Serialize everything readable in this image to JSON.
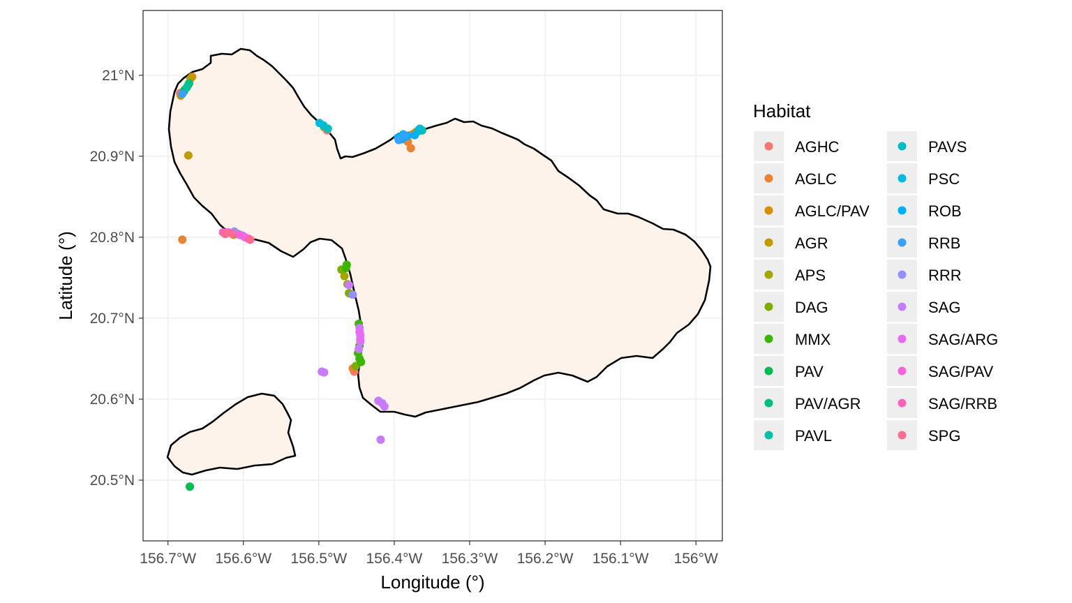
{
  "chart_data": {
    "type": "scatter",
    "title": "",
    "xlabel": "Longitude (°)",
    "ylabel": "Latitude (°)",
    "xlim": [
      -156.733,
      -155.965
    ],
    "ylim": [
      20.425,
      21.08
    ],
    "x_ticks": [
      {
        "value": -156.7,
        "label": "156.7°W"
      },
      {
        "value": -156.6,
        "label": "156.6°W"
      },
      {
        "value": -156.5,
        "label": "156.5°W"
      },
      {
        "value": -156.4,
        "label": "156.4°W"
      },
      {
        "value": -156.3,
        "label": "156.3°W"
      },
      {
        "value": -156.2,
        "label": "156.2°W"
      },
      {
        "value": -156.1,
        "label": "156.1°W"
      },
      {
        "value": -156.0,
        "label": "156°W"
      }
    ],
    "y_ticks": [
      {
        "value": 20.5,
        "label": "20.5°N"
      },
      {
        "value": 20.6,
        "label": "20.6°N"
      },
      {
        "value": 20.7,
        "label": "20.7°N"
      },
      {
        "value": 20.8,
        "label": "20.8°N"
      },
      {
        "value": 20.9,
        "label": "20.9°N"
      },
      {
        "value": 21.0,
        "label": "21°N"
      }
    ],
    "legend": {
      "title": "Habitat",
      "placement": "right",
      "entries": [
        {
          "name": "AGHC",
          "color": "#F8766D"
        },
        {
          "name": "AGLC",
          "color": "#EA8331"
        },
        {
          "name": "AGLC/PAV",
          "color": "#D89000"
        },
        {
          "name": "AGR",
          "color": "#C09B00"
        },
        {
          "name": "APS",
          "color": "#A3A500"
        },
        {
          "name": "DAG",
          "color": "#7CAE00"
        },
        {
          "name": "MMX",
          "color": "#39B600"
        },
        {
          "name": "PAV",
          "color": "#00BB4E"
        },
        {
          "name": "PAV/AGR",
          "color": "#00BF7D"
        },
        {
          "name": "PAVL",
          "color": "#00C1A3"
        },
        {
          "name": "PAVS",
          "color": "#00BFC4"
        },
        {
          "name": "PSC",
          "color": "#00BAE0"
        },
        {
          "name": "ROB",
          "color": "#00B0F6"
        },
        {
          "name": "RRB",
          "color": "#35A2FF"
        },
        {
          "name": "RRR",
          "color": "#9590FF"
        },
        {
          "name": "SAG",
          "color": "#C77CFF"
        },
        {
          "name": "SAG/ARG",
          "color": "#E76BF3"
        },
        {
          "name": "SAG/PAV",
          "color": "#FA62DB"
        },
        {
          "name": "SAG/RRB",
          "color": "#FF62BC"
        },
        {
          "name": "SPG",
          "color": "#FF6C91"
        }
      ]
    },
    "series": [
      {
        "name": "AGHC",
        "points": [
          [
            -156.684,
            20.978
          ],
          [
            -156.453,
            20.634
          ],
          [
            -156.489,
            20.932
          ],
          [
            -156.374,
            20.928
          ]
        ]
      },
      {
        "name": "AGLC",
        "points": [
          [
            -156.681,
            20.797
          ],
          [
            -156.378,
            20.91
          ],
          [
            -156.376,
            20.927
          ],
          [
            -156.455,
            20.638
          ],
          [
            -156.613,
            20.803
          ],
          [
            -156.382,
            20.918
          ]
        ]
      },
      {
        "name": "AGLC/PAV",
        "points": [
          [
            -156.668,
            20.998
          ],
          [
            -156.673,
            20.988
          ],
          [
            -156.683,
            20.975
          ],
          [
            -156.371,
            20.93
          ],
          [
            -156.493,
            20.936
          ]
        ]
      },
      {
        "name": "AGR",
        "points": [
          [
            -156.673,
            20.901
          ],
          [
            -156.67,
            20.996
          ]
        ]
      },
      {
        "name": "APS",
        "points": [
          [
            -156.466,
            20.752
          ],
          [
            -156.462,
            20.742
          ],
          [
            -156.457,
            20.73
          ]
        ]
      },
      {
        "name": "DAG",
        "points": [
          [
            -156.678,
            20.982
          ],
          [
            -156.47,
            20.76
          ],
          [
            -156.46,
            20.731
          ],
          [
            -156.451,
            20.641
          ],
          [
            -156.607,
            20.804
          ]
        ]
      },
      {
        "name": "MMX",
        "points": [
          [
            -156.463,
            20.766
          ],
          [
            -156.464,
            20.762
          ],
          [
            -156.447,
            20.693
          ],
          [
            -156.446,
            20.666
          ],
          [
            -156.448,
            20.657
          ],
          [
            -156.446,
            20.65
          ],
          [
            -156.444,
            20.646
          ]
        ]
      },
      {
        "name": "PAV",
        "points": [
          [
            -156.671,
            20.492
          ],
          [
            -156.679,
            20.98
          ]
        ]
      },
      {
        "name": "PAV/AGR",
        "points": [
          [
            -156.672,
            20.99
          ],
          [
            -156.368,
            20.931
          ]
        ]
      },
      {
        "name": "PAVL",
        "points": [
          [
            -156.675,
            20.985
          ],
          [
            -156.363,
            20.932
          ]
        ]
      },
      {
        "name": "PAVS",
        "points": [
          [
            -156.494,
            20.938
          ],
          [
            -156.488,
            20.934
          ],
          [
            -156.366,
            20.934
          ]
        ]
      },
      {
        "name": "PSC",
        "points": [
          [
            -156.499,
            20.941
          ],
          [
            -156.388,
            20.927
          ],
          [
            -156.367,
            20.933
          ]
        ]
      },
      {
        "name": "ROB",
        "points": [
          [
            -156.395,
            20.923
          ],
          [
            -156.39,
            20.921
          ],
          [
            -156.383,
            20.925
          ],
          [
            -156.373,
            20.926
          ]
        ]
      },
      {
        "name": "RRB",
        "points": [
          [
            -156.394,
            20.92
          ],
          [
            -156.386,
            20.926
          ],
          [
            -156.681,
            20.977
          ]
        ]
      },
      {
        "name": "RRR",
        "points": [
          [
            -156.612,
            20.807
          ],
          [
            -156.455,
            20.729
          ],
          [
            -156.601,
            20.802
          ]
        ]
      },
      {
        "name": "SAG",
        "points": [
          [
            -156.496,
            20.634
          ],
          [
            -156.493,
            20.633
          ],
          [
            -156.446,
            20.688
          ],
          [
            -156.445,
            20.679
          ],
          [
            -156.445,
            20.671
          ],
          [
            -156.447,
            20.662
          ],
          [
            -156.418,
            20.55
          ],
          [
            -156.421,
            20.598
          ],
          [
            -156.416,
            20.595
          ],
          [
            -156.413,
            20.591
          ],
          [
            -156.46,
            20.741
          ]
        ]
      },
      {
        "name": "SAG/ARG",
        "points": [
          [
            -156.446,
            20.683
          ],
          [
            -156.445,
            20.674
          ],
          [
            -156.598,
            20.8
          ]
        ]
      },
      {
        "name": "SAG/PAV",
        "points": [
          [
            -156.62,
            20.806
          ],
          [
            -156.605,
            20.803
          ]
        ]
      },
      {
        "name": "SAG/RRB",
        "points": [
          [
            -156.627,
            20.806
          ],
          [
            -156.593,
            20.798
          ]
        ]
      },
      {
        "name": "SPG",
        "points": [
          [
            -156.624,
            20.804
          ],
          [
            -156.591,
            20.797
          ],
          [
            -156.616,
            20.805
          ]
        ]
      }
    ]
  }
}
